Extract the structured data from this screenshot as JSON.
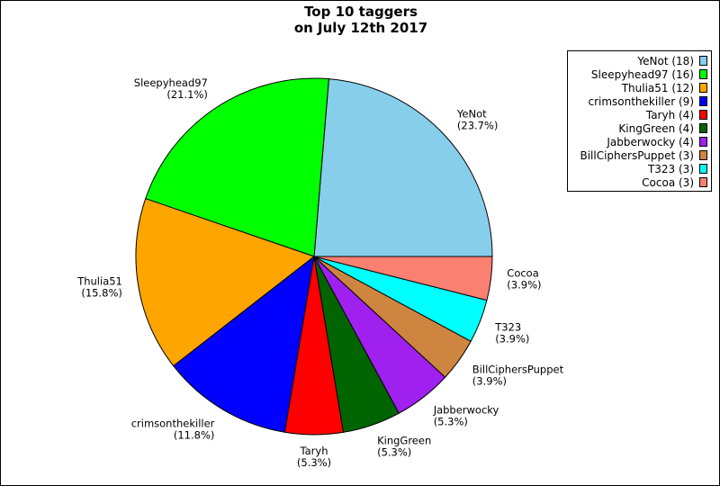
{
  "chart_data": {
    "type": "pie",
    "title": [
      "Top 10 taggers",
      "on July 12th 2017"
    ],
    "slices": [
      {
        "label": "YeNot",
        "value": 18,
        "percent": "23.7%",
        "legend": "YeNot (18)",
        "color": "#87CEEB"
      },
      {
        "label": "Sleepyhead97",
        "value": 16,
        "percent": "21.1%",
        "legend": "Sleepyhead97 (16)",
        "color": "#00FF00"
      },
      {
        "label": "Thulia51",
        "value": 12,
        "percent": "15.8%",
        "legend": "Thulia51 (12)",
        "color": "#FFA500"
      },
      {
        "label": "crimsonthekiller",
        "value": 9,
        "percent": "11.8%",
        "legend": "crimsonthekiller (9)",
        "color": "#0000FF"
      },
      {
        "label": "Taryh",
        "value": 4,
        "percent": "5.3%",
        "legend": "Taryh (4)",
        "color": "#FF0000"
      },
      {
        "label": "KingGreen",
        "value": 4,
        "percent": "5.3%",
        "legend": "KingGreen (4)",
        "color": "#006400"
      },
      {
        "label": "Jabberwocky",
        "value": 4,
        "percent": "5.3%",
        "legend": "Jabberwocky (4)",
        "color": "#A020F0"
      },
      {
        "label": "BillCiphersPuppet",
        "value": 3,
        "percent": "3.9%",
        "legend": "BillCiphersPuppet (3)",
        "color": "#CD853F"
      },
      {
        "label": "T323",
        "value": 3,
        "percent": "3.9%",
        "legend": "T323 (3)",
        "color": "#00FFFF"
      },
      {
        "label": "Cocoa",
        "value": 3,
        "percent": "3.9%",
        "legend": "Cocoa (3)",
        "color": "#FA8072"
      }
    ],
    "legend_position": "top-right",
    "start": "3 o'clock",
    "direction": "counterclockwise"
  }
}
